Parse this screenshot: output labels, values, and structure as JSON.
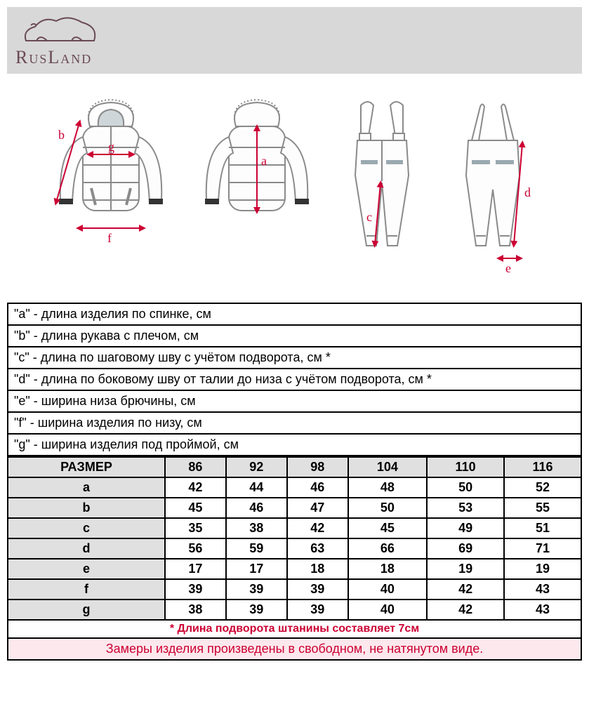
{
  "brand": {
    "name": "RusLand",
    "logo_color": "#6a4a55",
    "header_bg": "#d8d8d8"
  },
  "diagram": {
    "labels": {
      "a": "a",
      "b": "b",
      "c": "c",
      "d": "d",
      "e": "e",
      "f": "f",
      "g": "g"
    },
    "arrow_color": "#cc0033",
    "outline_color": "#8a8a8a",
    "label_color": "#cc0033"
  },
  "legend": [
    "\"a\" - длина изделия по спинке, см",
    "\"b\" - длина рукава с плечом, см",
    "\"c\" - длина по шаговому шву с учётом подворота, см *",
    "\"d\" - длина по боковому шву от талии до низа с учётом подворота, см *",
    "\"e\" - ширина низа брючины, см",
    "\"f\" - ширина изделия по низу, см",
    "\"g\" - ширина изделия под проймой, см"
  ],
  "size_table": {
    "header_label": "РАЗМЕР",
    "sizes": [
      "86",
      "92",
      "98",
      "104",
      "110",
      "116"
    ],
    "rows": [
      {
        "label": "a",
        "values": [
          "42",
          "44",
          "46",
          "48",
          "50",
          "52"
        ]
      },
      {
        "label": "b",
        "values": [
          "45",
          "46",
          "47",
          "50",
          "53",
          "55"
        ]
      },
      {
        "label": "c",
        "values": [
          "35",
          "38",
          "42",
          "45",
          "49",
          "51"
        ]
      },
      {
        "label": "d",
        "values": [
          "56",
          "59",
          "63",
          "66",
          "69",
          "71"
        ]
      },
      {
        "label": "e",
        "values": [
          "17",
          "17",
          "18",
          "18",
          "19",
          "19"
        ]
      },
      {
        "label": "f",
        "values": [
          "39",
          "39",
          "39",
          "40",
          "42",
          "43"
        ]
      },
      {
        "label": "g",
        "values": [
          "38",
          "39",
          "39",
          "40",
          "42",
          "43"
        ]
      }
    ],
    "header_bg": "#e0e0e0"
  },
  "footnotes": {
    "note1": "* Длина подворота штанины составляет 7см",
    "note2": "Замеры изделия произведены в свободном, не натянутом виде.",
    "note_color": "#cc0033",
    "note2_bg": "#fce8ed"
  }
}
